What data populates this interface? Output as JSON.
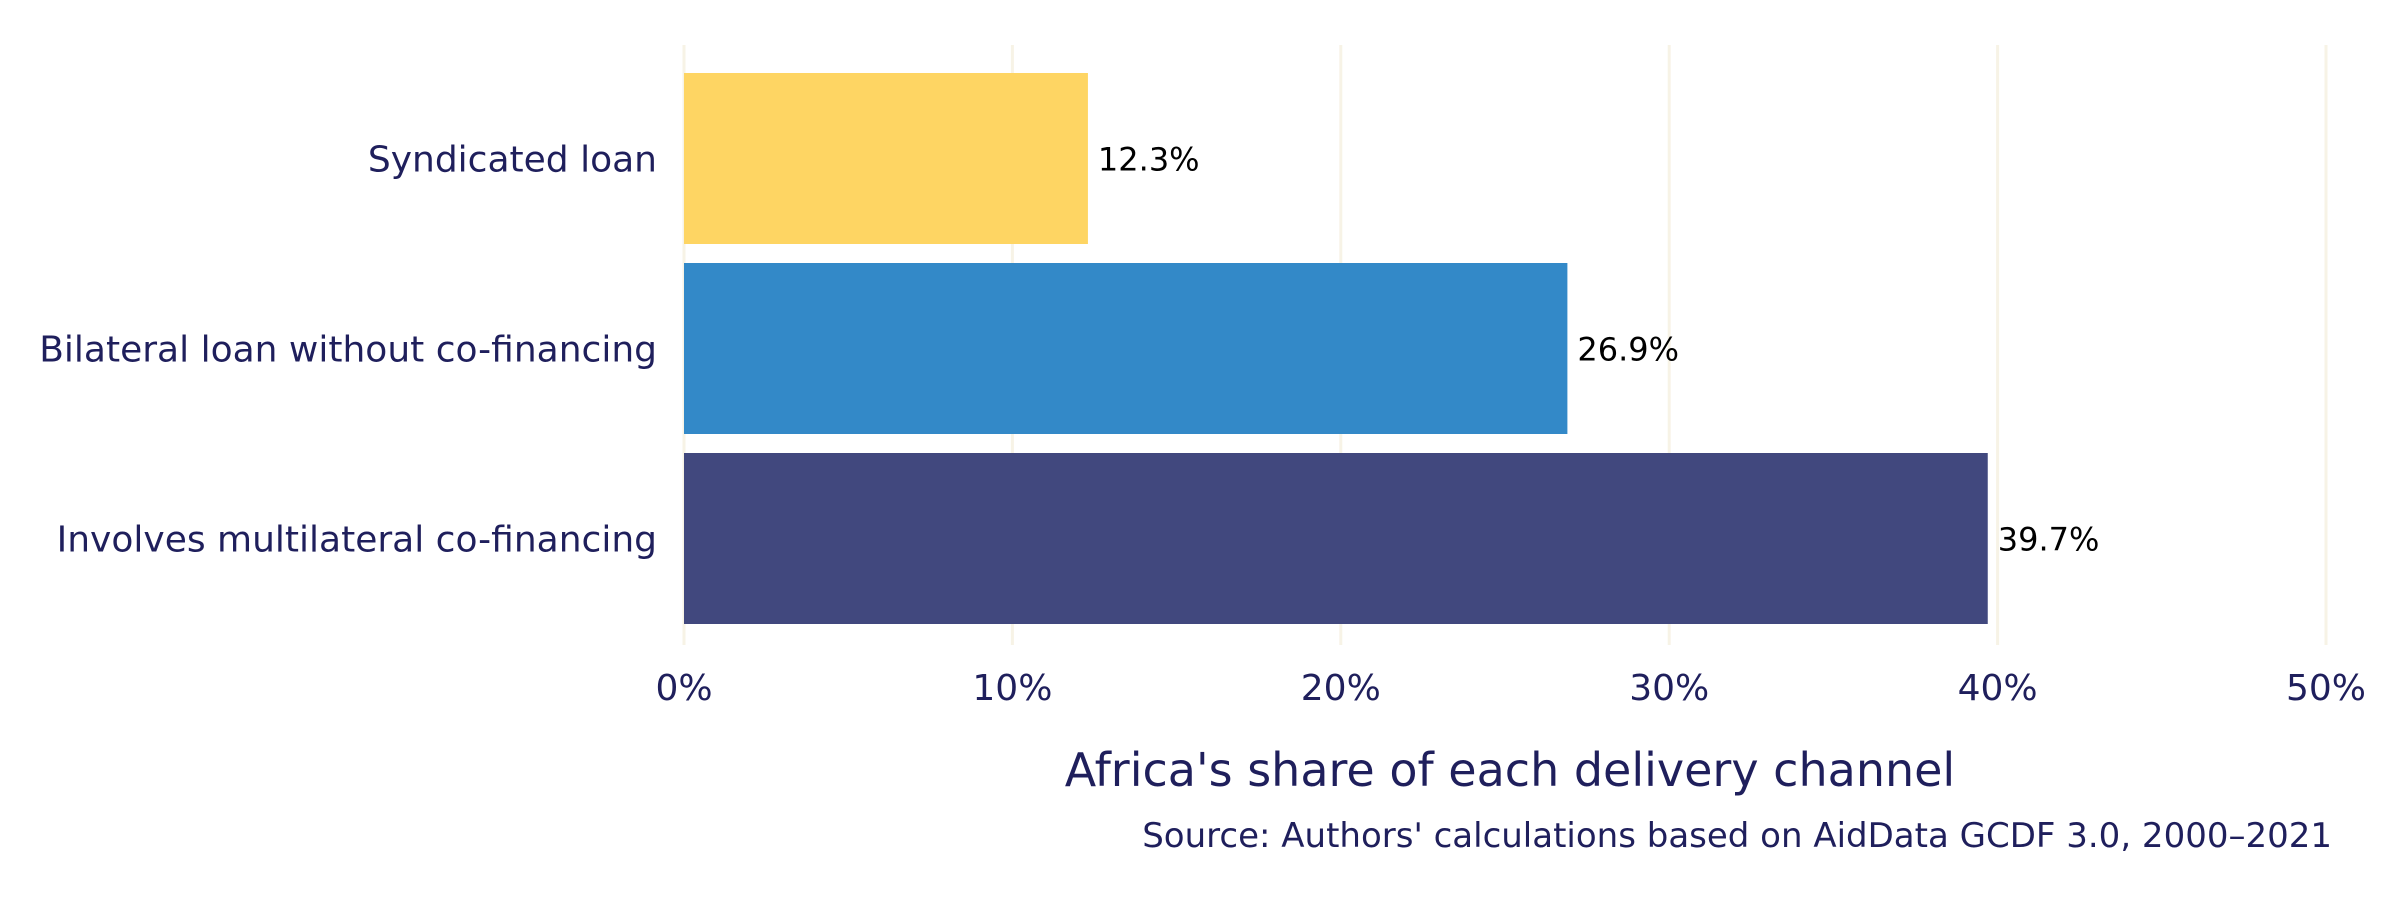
{
  "chart_data": {
    "type": "bar",
    "orientation": "horizontal",
    "categories": [
      "Syndicated loan",
      "Bilateral loan without co-financing",
      "Involves multilateral co-financing"
    ],
    "values": [
      12.3,
      26.9,
      39.7
    ],
    "data_labels": [
      "12.3%",
      "26.9%",
      "39.7%"
    ],
    "colors": [
      "#fed563",
      "#3389c8",
      "#41487e"
    ],
    "xlim": [
      0,
      50
    ],
    "xticks": [
      0,
      10,
      20,
      30,
      40,
      50
    ],
    "xtick_labels": [
      "0%",
      "10%",
      "20%",
      "30%",
      "40%",
      "50%"
    ],
    "xlabel": "Africa's share of each delivery channel",
    "ylabel": "",
    "grid": true,
    "grid_color": "#f7f3e6",
    "text_color": "#1f1f5c",
    "caption": "Source: Authors' calculations based on AidData GCDF 3.0, 2000–2021"
  }
}
